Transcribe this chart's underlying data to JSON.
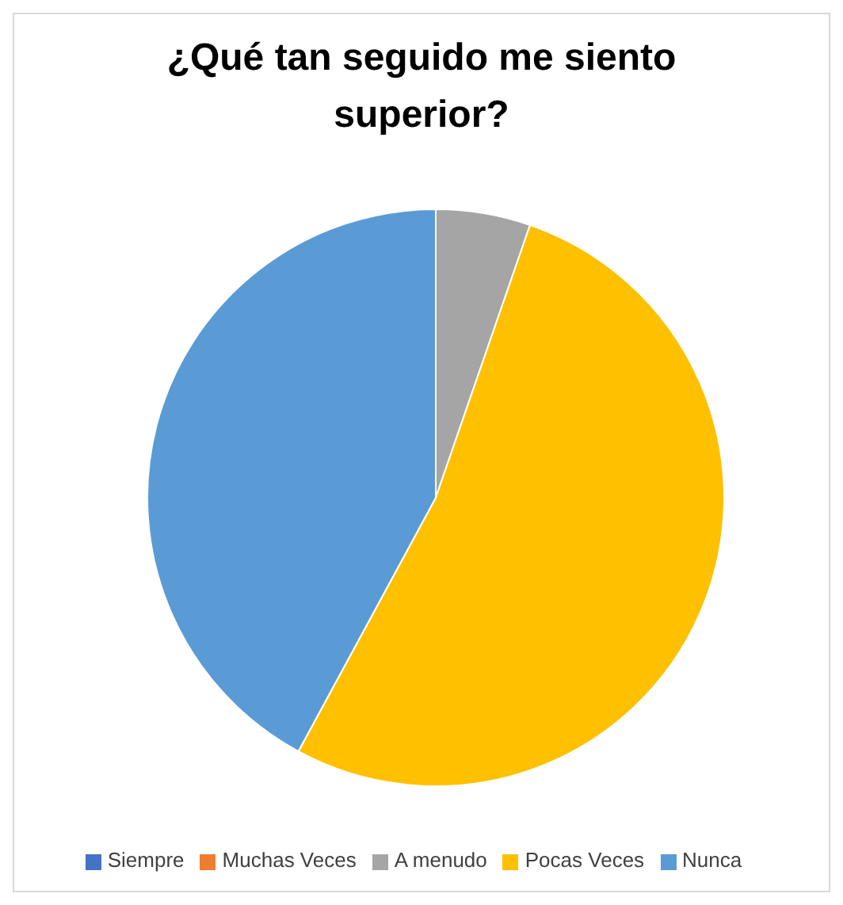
{
  "chart_data": {
    "type": "pie",
    "title": "¿Qué tan seguido me siento superior?",
    "categories": [
      "Siempre",
      "Muchas Veces",
      "A menudo",
      "Pocas Veces",
      "Nunca"
    ],
    "values": [
      0,
      0,
      5.3,
      52.6,
      42.1
    ],
    "colors": [
      "#4472c4",
      "#ed7d31",
      "#a5a5a5",
      "#ffc000",
      "#5b9bd5"
    ],
    "legend": "bottom"
  }
}
